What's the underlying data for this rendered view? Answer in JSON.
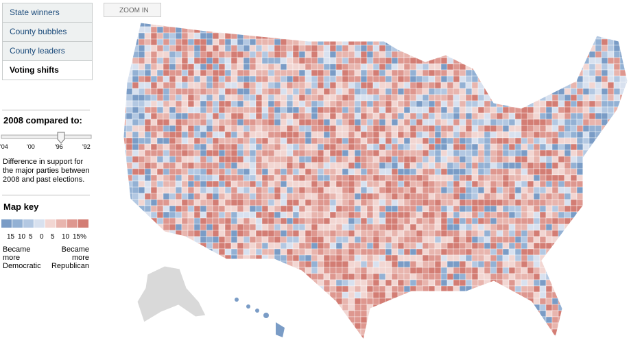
{
  "tabs": [
    "State winners",
    "County bubbles",
    "County leaders",
    "Voting shifts"
  ],
  "zoom": "ZOOM IN",
  "compare": {
    "heading": "2008 compared to:",
    "years": [
      "'04",
      "'00",
      "'96",
      "'92"
    ],
    "description": "Difference in support for the major parties between 2008 and past elections."
  },
  "key": {
    "heading": "Map key",
    "colors": [
      "#7a9cc6",
      "#93b1d4",
      "#b3c8e2",
      "#d8e1ef",
      "#f2d6d2",
      "#e8b5ae",
      "#de978f",
      "#d37d74"
    ],
    "labels": [
      "15",
      "10",
      "5",
      "0",
      "5",
      "10",
      "15%"
    ],
    "left": "Became more Democratic",
    "right": "Became more Republican"
  }
}
